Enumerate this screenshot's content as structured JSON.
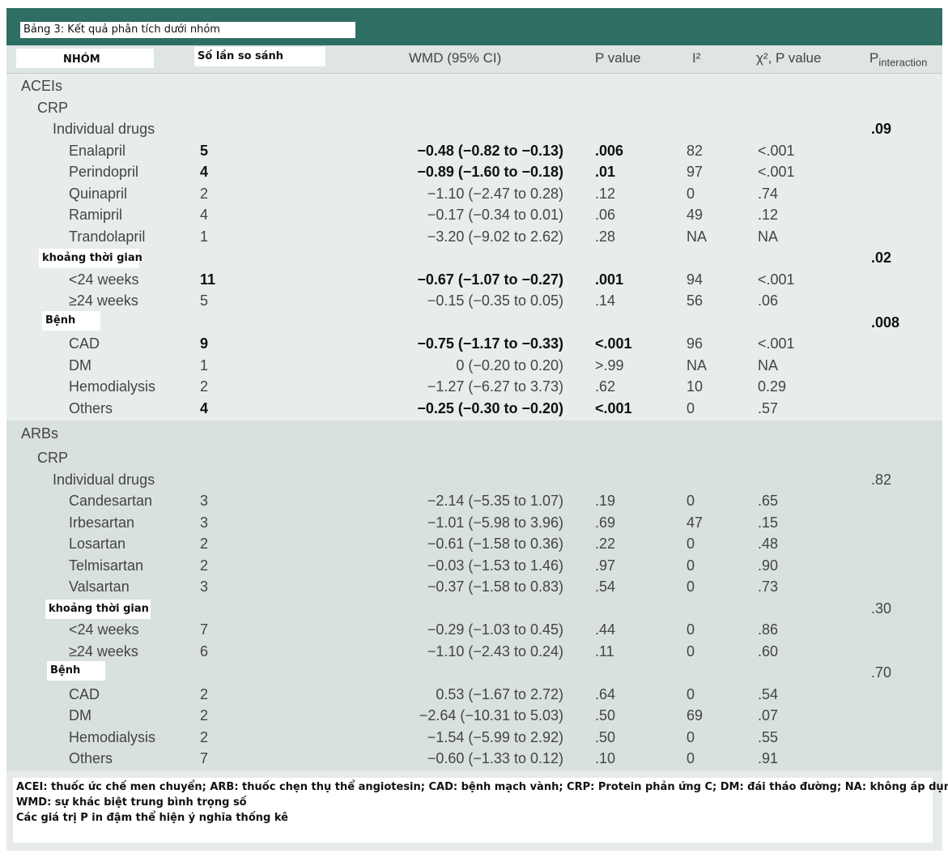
{
  "title": "Bảng 3: Kết quả phân tích dưới nhóm",
  "headers": {
    "group": "NHÓM",
    "comparisons": "Số lần so sánh",
    "wmd": "WMD (95% CI)",
    "p_value": "P value",
    "i2": "I²",
    "chi2": "χ², P value",
    "p_interaction": "P",
    "p_interaction_sub": "interaction"
  },
  "sections": {
    "acei": {
      "label": "ACEIs",
      "crp": "CRP",
      "individual_drugs": {
        "label": "Individual drugs",
        "p_interaction": ".09"
      },
      "drugs": [
        {
          "name": "Enalapril",
          "n": "5",
          "wmd": "−0.48 (−0.82 to −0.13)",
          "p": ".006",
          "i2": "82",
          "chi": "<.001",
          "bold": true
        },
        {
          "name": "Perindopril",
          "n": "4",
          "wmd": "−0.89 (−1.60 to −0.18)",
          "p": ".01",
          "i2": "97",
          "chi": "<.001",
          "bold": true
        },
        {
          "name": "Quinapril",
          "n": "2",
          "wmd": "−1.10 (−2.47 to 0.28)",
          "p": ".12",
          "i2": "0",
          "chi": ".74",
          "bold": false
        },
        {
          "name": "Ramipril",
          "n": "4",
          "wmd": "−0.17 (−0.34 to 0.01)",
          "p": ".06",
          "i2": "49",
          "chi": ".12",
          "bold": false
        },
        {
          "name": "Trandolapril",
          "n": "1",
          "wmd": "−3.20 (−9.02 to 2.62)",
          "p": ".28",
          "i2": "NA",
          "chi": "NA",
          "bold": false
        }
      ],
      "duration": {
        "label": "khoảng thời gian",
        "p_interaction": ".02"
      },
      "durations": [
        {
          "name": "<24 weeks",
          "n": "11",
          "wmd": "−0.67 (−1.07 to −0.27)",
          "p": ".001",
          "i2": "94",
          "chi": "<.001",
          "bold": true
        },
        {
          "name": "≥24 weeks",
          "n": "5",
          "wmd": "−0.15 (−0.35 to 0.05)",
          "p": ".14",
          "i2": "56",
          "chi": ".06",
          "bold": false
        }
      ],
      "disease": {
        "label": "Bệnh",
        "p_interaction": ".008"
      },
      "diseases": [
        {
          "name": "CAD",
          "n": "9",
          "wmd": "−0.75 (−1.17 to −0.33)",
          "p": "<.001",
          "i2": "96",
          "chi": "<.001",
          "bold": true
        },
        {
          "name": "DM",
          "n": "1",
          "wmd": "0 (−0.20 to 0.20)",
          "p": ">.99",
          "i2": "NA",
          "chi": "NA",
          "bold": false
        },
        {
          "name": "Hemodialysis",
          "n": "2",
          "wmd": "−1.27 (−6.27 to 3.73)",
          "p": ".62",
          "i2": "10",
          "chi": "0.29",
          "bold": false
        },
        {
          "name": "Others",
          "n": "4",
          "wmd": "−0.25 (−0.30 to −0.20)",
          "p": "<.001",
          "i2": "0",
          "chi": ".57",
          "bold": true
        }
      ]
    },
    "arb": {
      "label": "ARBs",
      "crp": "CRP",
      "individual_drugs": {
        "label": "Individual drugs",
        "p_interaction": ".82"
      },
      "drugs": [
        {
          "name": "Candesartan",
          "n": "3",
          "wmd": "−2.14 (−5.35 to 1.07)",
          "p": ".19",
          "i2": "0",
          "chi": ".65",
          "bold": false
        },
        {
          "name": "Irbesartan",
          "n": "3",
          "wmd": "−1.01 (−5.98 to 3.96)",
          "p": ".69",
          "i2": "47",
          "chi": ".15",
          "bold": false
        },
        {
          "name": "Losartan",
          "n": "2",
          "wmd": "−0.61 (−1.58 to 0.36)",
          "p": ".22",
          "i2": "0",
          "chi": ".48",
          "bold": false
        },
        {
          "name": "Telmisartan",
          "n": "2",
          "wmd": "−0.03 (−1.53 to 1.46)",
          "p": ".97",
          "i2": "0",
          "chi": ".90",
          "bold": false
        },
        {
          "name": "Valsartan",
          "n": "3",
          "wmd": "−0.37 (−1.58 to 0.83)",
          "p": ".54",
          "i2": "0",
          "chi": ".73",
          "bold": false
        }
      ],
      "duration": {
        "label": "khoảng thời gian",
        "p_interaction": ".30"
      },
      "durations": [
        {
          "name": "<24 weeks",
          "n": "7",
          "wmd": "−0.29 (−1.03 to 0.45)",
          "p": ".44",
          "i2": "0",
          "chi": ".86",
          "bold": false
        },
        {
          "name": "≥24 weeks",
          "n": "6",
          "wmd": "−1.10 (−2.43 to 0.24)",
          "p": ".11",
          "i2": "0",
          "chi": ".60",
          "bold": false
        }
      ],
      "disease": {
        "label": "Bệnh",
        "p_interaction": ".70"
      },
      "diseases": [
        {
          "name": "CAD",
          "n": "2",
          "wmd": "0.53 (−1.67 to 2.72)",
          "p": ".64",
          "i2": "0",
          "chi": ".54",
          "bold": false
        },
        {
          "name": "DM",
          "n": "2",
          "wmd": "−2.64 (−10.31 to 5.03)",
          "p": ".50",
          "i2": "69",
          "chi": ".07",
          "bold": false
        },
        {
          "name": "Hemodialysis",
          "n": "2",
          "wmd": "−1.54 (−5.99 to 2.92)",
          "p": ".50",
          "i2": "0",
          "chi": ".55",
          "bold": false
        },
        {
          "name": "Others",
          "n": "7",
          "wmd": "−0.60 (−1.33 to 0.12)",
          "p": ".10",
          "i2": "0",
          "chi": ".91",
          "bold": false
        }
      ]
    }
  },
  "footnote": {
    "line1": "ACEI: thuốc ức chế men chuyển; ARB: thuốc chẹn thụ thể angiotesin; CAD: bệnh mạch vành; CRP: Protein phản ứng C; DM: đái tháo đường; NA: không áp dụng;",
    "line2": "WMD: sự khác biệt trung bình trọng số",
    "line3": "Các giá trị P in đậm thể hiện ý nghĩa thống kê"
  },
  "colors": {
    "title_bar": "#2f6e62",
    "acei_bg": "#e8edeb",
    "arb_bg": "#d8e1df"
  }
}
